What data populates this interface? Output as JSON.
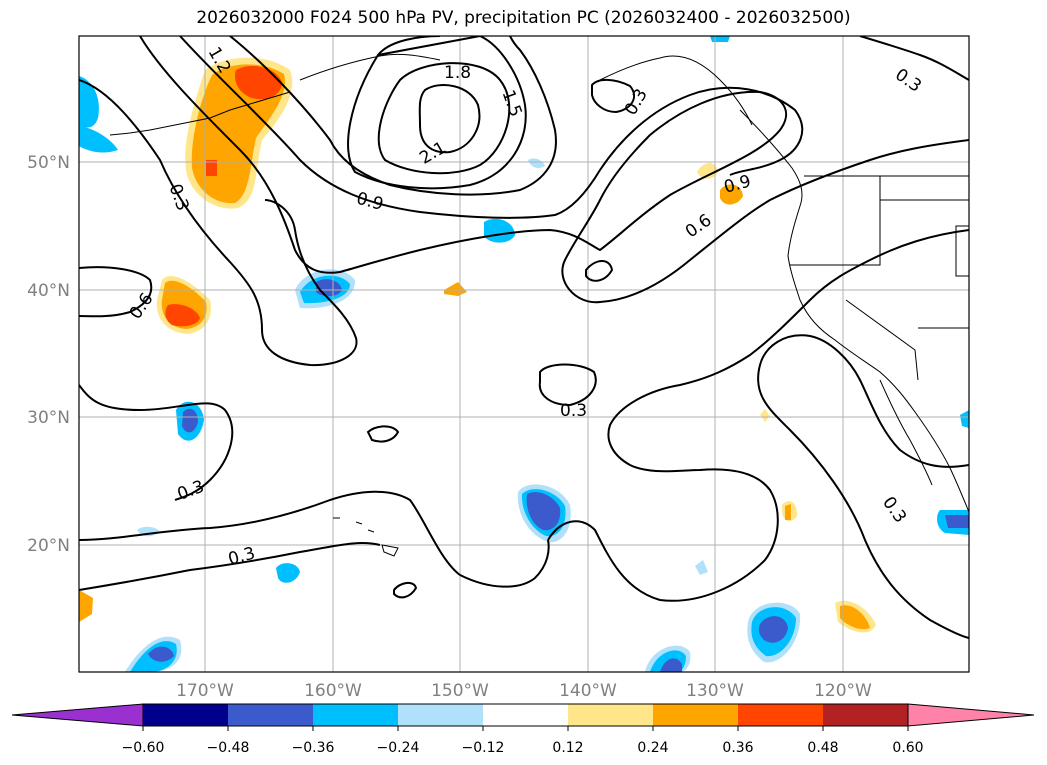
{
  "title": "2026032000 F024 500 hPa PV, precipitation PC (2026032400 - 2026032500)",
  "map": {
    "lat_ticks": [
      "50°N",
      "40°N",
      "30°N",
      "20°N"
    ],
    "lon_ticks": [
      "170°W",
      "160°W",
      "150°W",
      "140°W",
      "130°W",
      "120°W"
    ],
    "grid": true,
    "contour_labels": [
      "1.2",
      "1.8",
      "1.5",
      "2.1",
      "0.3",
      "0.9",
      "0.3",
      "0.9",
      "0.6",
      "0.3",
      "0.6",
      "0.3",
      "0.3",
      "0.3",
      "0.3"
    ]
  },
  "colorbar": {
    "colors": [
      "#9b30d0",
      "#00008b",
      "#3b5bcc",
      "#00bfff",
      "#b0e0fa",
      "#ffffff",
      "#ffe68a",
      "#ffa500",
      "#ff4500",
      "#b22222",
      "#ff82a8"
    ],
    "labels": [
      "−0.60",
      "−0.48",
      "−0.36",
      "−0.24",
      "−0.12",
      "0.12",
      "0.24",
      "0.36",
      "0.48",
      "0.60"
    ]
  }
}
